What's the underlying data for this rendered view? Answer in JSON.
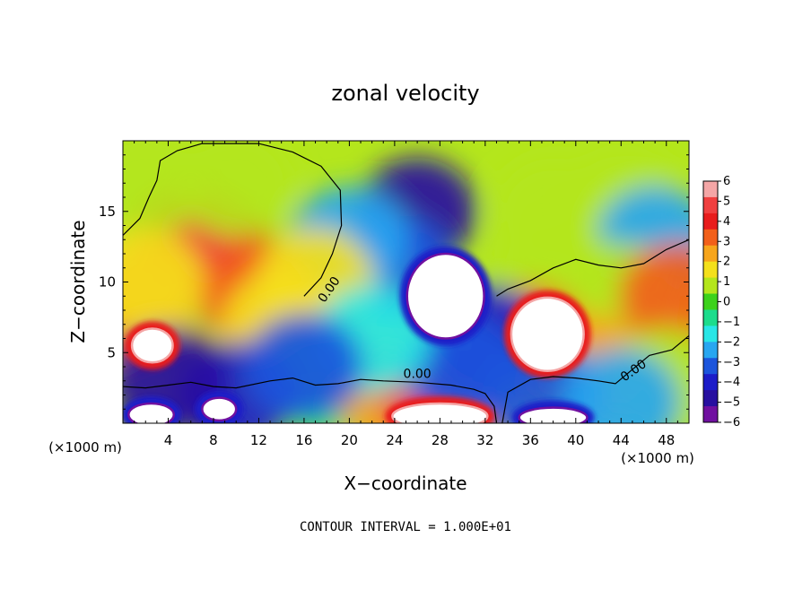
{
  "chart_data": {
    "type": "heatmap",
    "title": "zonal velocity",
    "xlabel": "X−coordinate",
    "ylabel": "Z−coordinate",
    "x_unit_left": "(×1000 m)",
    "x_unit_right": "(×1000 m)",
    "xlim": [
      0,
      50
    ],
    "ylim": [
      0,
      20
    ],
    "x_ticks": [
      "4",
      "8",
      "12",
      "16",
      "20",
      "24",
      "28",
      "32",
      "36",
      "40",
      "44",
      "48"
    ],
    "y_ticks": [
      "5",
      "10",
      "15"
    ],
    "colorbar": {
      "range": [
        -6,
        6
      ],
      "ticks": [
        "6",
        "5",
        "4",
        "3",
        "2",
        "1",
        "0",
        "−1",
        "−2",
        "−3",
        "−4",
        "−5",
        "−6"
      ],
      "colors": [
        "#f4a6a6",
        "#f04040",
        "#e81c1c",
        "#f2601a",
        "#f7a51c",
        "#f4e01c",
        "#b4e61c",
        "#3cd21c",
        "#1cdc8c",
        "#28e6e6",
        "#28a6f0",
        "#1c55dc",
        "#1c1cc8",
        "#2810a0",
        "#7010a0"
      ]
    },
    "contour_label": "0.00",
    "contour_note": "CONTOUR INTERVAL = 1.000E+01",
    "regions": [
      {
        "x": 26,
        "y": 15,
        "value": -4.5
      },
      {
        "x": 24,
        "y": 11,
        "value": -3.5
      },
      {
        "x": 20,
        "y": 13,
        "value": -2
      },
      {
        "x": 38,
        "y": 15,
        "value": 0.5
      },
      {
        "x": 44,
        "y": 16,
        "value": 1
      },
      {
        "x": 47,
        "y": 13,
        "value": -2
      },
      {
        "x": 8,
        "y": 12,
        "value": 4
      },
      {
        "x": 6,
        "y": 13,
        "value": 5
      },
      {
        "x": 12,
        "y": 9,
        "value": 3
      },
      {
        "x": 17,
        "y": 10,
        "value": 2
      },
      {
        "x": 10,
        "y": 17,
        "value": 1
      },
      {
        "x": 2,
        "y": 17,
        "value": 0.5
      },
      {
        "x": 1,
        "y": 8,
        "value": 3
      },
      {
        "x": 2,
        "y": 10,
        "value": 2
      },
      {
        "x": 14,
        "y": 7,
        "value": 1.5
      },
      {
        "x": 38,
        "y": 11,
        "value": 1
      },
      {
        "x": 44,
        "y": 9,
        "value": 0.5
      },
      {
        "x": 49,
        "y": 9,
        "value": 3
      },
      {
        "x": 36,
        "y": 6,
        "value": 3
      },
      {
        "x": 41,
        "y": 4,
        "value": 2.5
      },
      {
        "x": 48,
        "y": 3,
        "value": 1
      },
      {
        "x": 18,
        "y": 3,
        "value": -1
      },
      {
        "x": 10,
        "y": 2,
        "value": -4
      },
      {
        "x": 4,
        "y": 3,
        "value": -4.5
      },
      {
        "x": 24,
        "y": 2,
        "value": 2.5
      },
      {
        "x": 28,
        "y": 1.5,
        "value": 4.5
      },
      {
        "x": 32,
        "y": 6,
        "value": -4
      },
      {
        "x": 30,
        "y": 4,
        "value": -3
      },
      {
        "x": 37,
        "y": 2,
        "value": -3
      },
      {
        "x": 44,
        "y": 1.5,
        "value": -2.5
      },
      {
        "x": 22,
        "y": 6,
        "value": -1.5
      },
      {
        "x": 16,
        "y": 4,
        "value": -3
      }
    ],
    "exceed_areas": [
      {
        "cx": 28.5,
        "cy": 9.0,
        "rx": 3.4,
        "ry": 3.0,
        "over": "low"
      },
      {
        "cx": 37.5,
        "cy": 6.3,
        "rx": 3.2,
        "ry": 2.6,
        "over": "high"
      },
      {
        "cx": 2.6,
        "cy": 5.5,
        "rx": 1.8,
        "ry": 1.2,
        "over": "high"
      },
      {
        "cx": 28.0,
        "cy": 0.5,
        "rx": 4.2,
        "ry": 0.9,
        "over": "high"
      },
      {
        "cx": 38.0,
        "cy": 0.4,
        "rx": 3.0,
        "ry": 0.7,
        "over": "low"
      },
      {
        "cx": 2.5,
        "cy": 0.6,
        "rx": 2.0,
        "ry": 0.8,
        "over": "low"
      },
      {
        "cx": 8.5,
        "cy": 1.0,
        "rx": 1.5,
        "ry": 0.8,
        "over": "low"
      }
    ],
    "zero_contours": [
      [
        [
          0,
          13.3
        ],
        [
          1.5,
          14.5
        ],
        [
          2.3,
          16
        ],
        [
          3,
          17.2
        ],
        [
          3.3,
          18.6
        ],
        [
          4.8,
          19.3
        ],
        [
          7,
          19.8
        ],
        [
          12,
          19.8
        ],
        [
          15,
          19.2
        ],
        [
          17.5,
          18.2
        ],
        [
          19.2,
          16.5
        ],
        [
          19.3,
          14
        ],
        [
          18.5,
          12
        ],
        [
          17.5,
          10.3
        ],
        [
          16,
          9
        ]
      ],
      [
        [
          0,
          2.6
        ],
        [
          2,
          2.5
        ],
        [
          4,
          2.7
        ],
        [
          6,
          2.9
        ],
        [
          8,
          2.6
        ],
        [
          10,
          2.5
        ],
        [
          13,
          3.0
        ],
        [
          15,
          3.2
        ],
        [
          17,
          2.7
        ],
        [
          19,
          2.8
        ],
        [
          21,
          3.1
        ],
        [
          23,
          3.0
        ],
        [
          26,
          2.9
        ],
        [
          29,
          2.7
        ],
        [
          31,
          2.4
        ],
        [
          32,
          2.1
        ],
        [
          32.8,
          1.2
        ],
        [
          33,
          0
        ]
      ],
      [
        [
          33.5,
          0
        ],
        [
          34,
          2.2
        ],
        [
          36,
          3.1
        ],
        [
          38,
          3.3
        ],
        [
          40,
          3.2
        ],
        [
          42,
          3.0
        ],
        [
          43.5,
          2.8
        ],
        [
          45,
          3.8
        ],
        [
          46.5,
          4.8
        ],
        [
          48.5,
          5.2
        ],
        [
          50,
          6.2
        ]
      ],
      [
        [
          33,
          9.0
        ],
        [
          34,
          9.5
        ],
        [
          36,
          10.1
        ],
        [
          38,
          11.0
        ],
        [
          40,
          11.6
        ],
        [
          42,
          11.2
        ],
        [
          44,
          11.0
        ],
        [
          46,
          11.3
        ],
        [
          48,
          12.3
        ],
        [
          50,
          13.0
        ]
      ]
    ],
    "zero_label_positions": [
      [
        18.5,
        9.3
      ],
      [
        26,
        3.2
      ],
      [
        45.3,
        3.5
      ]
    ]
  }
}
